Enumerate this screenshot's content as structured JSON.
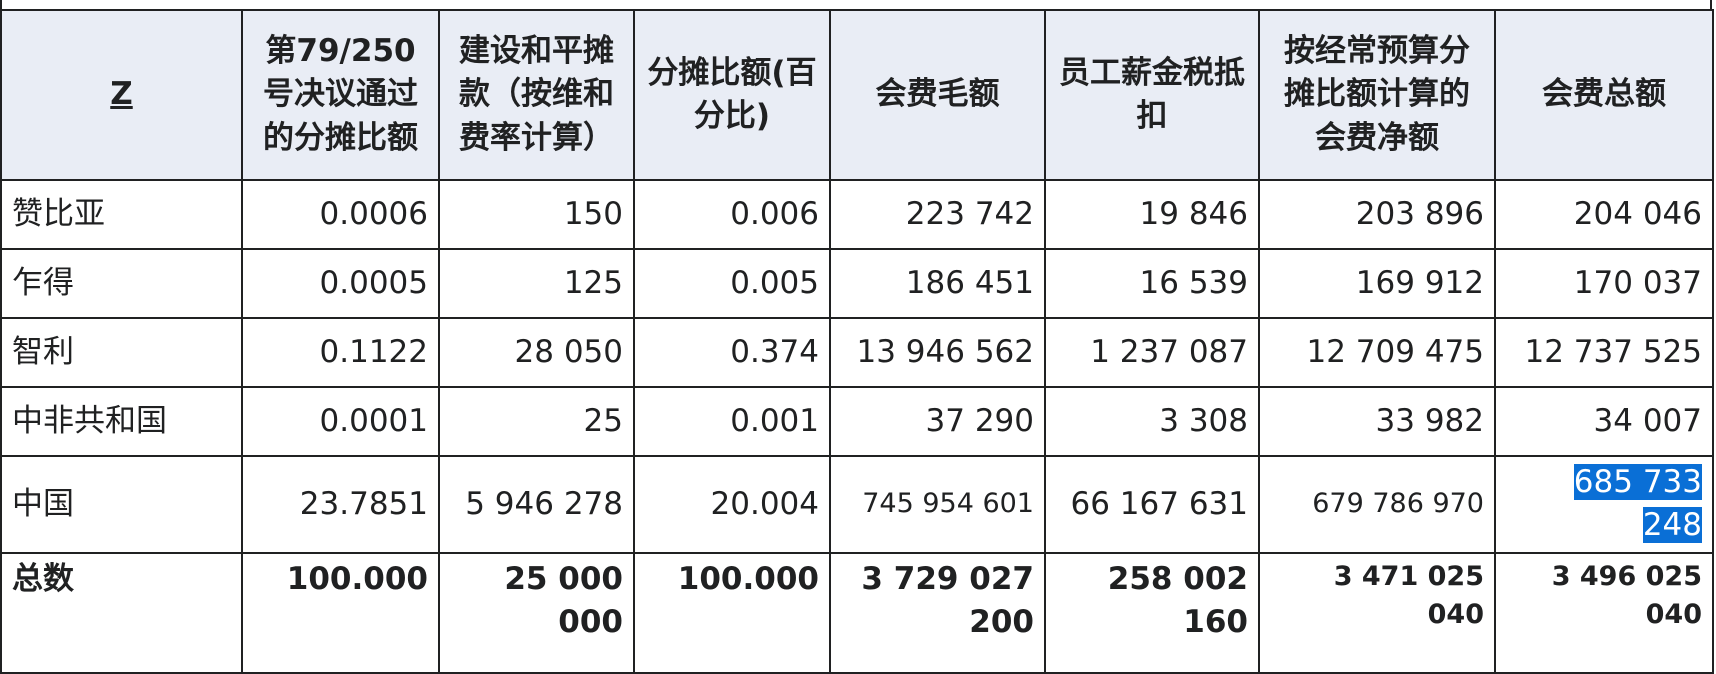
{
  "table": {
    "header": [
      "Z",
      "第79/250号决议通过的分摊比额",
      "建设和平摊款（按维和费率计算）",
      "分摊比额(百分比)",
      "会费毛额",
      "员工薪金税抵扣",
      "按经常预算分摊比额计算的会费净额",
      "会费总额"
    ],
    "rows": [
      [
        "赞比亚",
        "0.0006",
        "150",
        "0.006",
        "223 742",
        "19 846",
        "203 896",
        "204 046"
      ],
      [
        "乍得",
        "0.0005",
        "125",
        "0.005",
        "186 451",
        "16 539",
        "169 912",
        "170 037"
      ],
      [
        "智利",
        "0.1122",
        "28 050",
        "0.374",
        "13 946 562",
        "1 237 087",
        "12 709 475",
        "12 737 525"
      ],
      [
        "中非共和国",
        "0.0001",
        "25",
        "0.001",
        "37 290",
        "3 308",
        "33 982",
        "34 007"
      ],
      [
        "中国",
        "23.7851",
        "5 946 278",
        "20.004",
        "745 954 601",
        "66 167 631",
        "679 786 970",
        "685 733 248"
      ]
    ],
    "total": [
      "总数",
      "100.000",
      "25 000 000",
      "100.000",
      "3 729 027 200",
      "258 002 160",
      "3 471 025 040",
      "3 496 025 040"
    ]
  }
}
